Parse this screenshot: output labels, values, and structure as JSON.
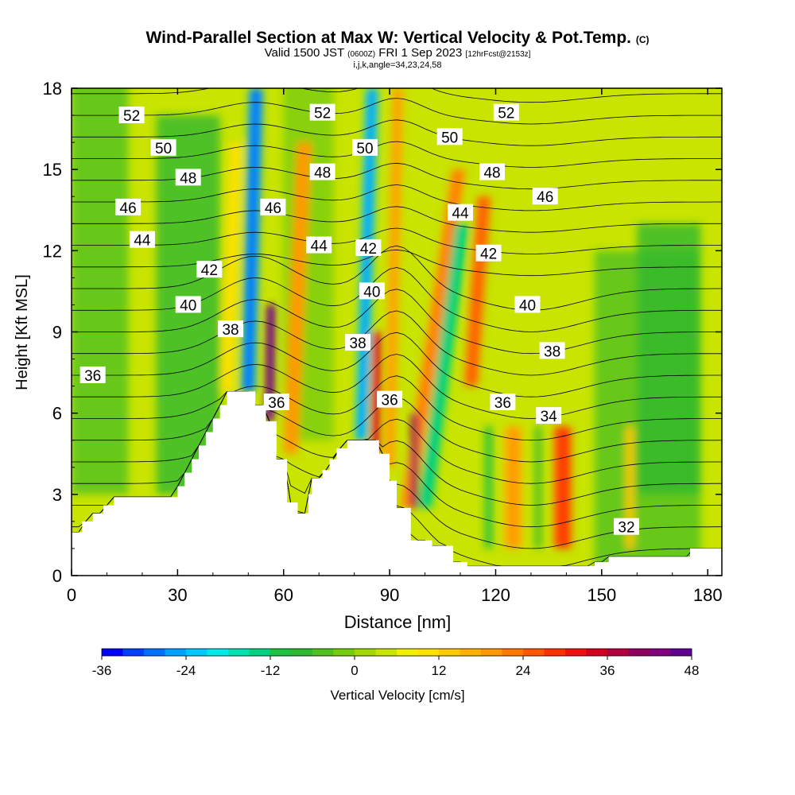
{
  "titles": {
    "main": "Wind-Parallel Section at Max W: Vertical Velocity & Pot.Temp.",
    "copyright": "(C)",
    "valid_prefix": "Valid 1500 JST",
    "valid_z": "(0600Z)",
    "valid_date": "FRI 1 Sep 2023",
    "forecast": "[12hrFcst@2153z]",
    "params": "i,j,k,angle=34,23,24,58"
  },
  "chart_data": {
    "type": "heatmap",
    "xlabel": "Distance [nm]",
    "ylabel": "Height [Kft MSL]",
    "xlim": [
      0,
      184
    ],
    "ylim": [
      0,
      18
    ],
    "x_ticks": [
      0,
      30,
      60,
      90,
      120,
      150,
      180
    ],
    "y_ticks": [
      0,
      3,
      6,
      9,
      12,
      15,
      18
    ],
    "colorbar": {
      "label": "Vertical Velocity [cm/s]",
      "ticks": [
        -36,
        -24,
        -12,
        0,
        12,
        24,
        36,
        48
      ],
      "levels": [
        -36,
        -33,
        -30,
        -27,
        -24,
        -21,
        -18,
        -15,
        -12,
        -9,
        -6,
        -3,
        0,
        3,
        6,
        9,
        12,
        15,
        18,
        21,
        24,
        27,
        30,
        33,
        36,
        39,
        42,
        45,
        48
      ],
      "colors": [
        "#0000ff",
        "#0040ff",
        "#0070ff",
        "#00a0ff",
        "#00c8ff",
        "#00e8e8",
        "#00e0b0",
        "#00d080",
        "#20c040",
        "#30b830",
        "#50c020",
        "#78cc10",
        "#a0d800",
        "#c8e400",
        "#f0f000",
        "#ffe000",
        "#ffc800",
        "#ffb000",
        "#ff9800",
        "#ff7800",
        "#ff5800",
        "#ff3000",
        "#f01010",
        "#d00020",
        "#b00040",
        "#900060",
        "#800080",
        "#600090"
      ]
    },
    "terrain_profile": [
      [
        0,
        1.6
      ],
      [
        3,
        1.6
      ],
      [
        3,
        2.0
      ],
      [
        6,
        2.0
      ],
      [
        6,
        2.3
      ],
      [
        9,
        2.3
      ],
      [
        9,
        2.6
      ],
      [
        12,
        2.6
      ],
      [
        12,
        2.9
      ],
      [
        30,
        2.9
      ],
      [
        30,
        3.3
      ],
      [
        32,
        3.3
      ],
      [
        32,
        3.8
      ],
      [
        34,
        3.8
      ],
      [
        34,
        4.3
      ],
      [
        36,
        4.3
      ],
      [
        36,
        4.8
      ],
      [
        38,
        4.8
      ],
      [
        38,
        5.3
      ],
      [
        40,
        5.3
      ],
      [
        40,
        5.8
      ],
      [
        42,
        5.8
      ],
      [
        42,
        6.3
      ],
      [
        44,
        6.3
      ],
      [
        44,
        6.8
      ],
      [
        52,
        6.8
      ],
      [
        52,
        6.3
      ],
      [
        55,
        6.3
      ],
      [
        55,
        5.7
      ],
      [
        58,
        5.7
      ],
      [
        58,
        4.3
      ],
      [
        61,
        4.3
      ],
      [
        61,
        2.7
      ],
      [
        64,
        2.7
      ],
      [
        64,
        2.3
      ],
      [
        67,
        2.3
      ],
      [
        67,
        3.0
      ],
      [
        68,
        3.0
      ],
      [
        68,
        3.6
      ],
      [
        71,
        3.6
      ],
      [
        71,
        3.9
      ],
      [
        73,
        3.9
      ],
      [
        73,
        4.3
      ],
      [
        75,
        4.3
      ],
      [
        75,
        4.7
      ],
      [
        78,
        4.7
      ],
      [
        78,
        5.0
      ],
      [
        87,
        5.0
      ],
      [
        87,
        4.5
      ],
      [
        90,
        4.5
      ],
      [
        90,
        3.5
      ],
      [
        92,
        3.5
      ],
      [
        92,
        2.5
      ],
      [
        96,
        2.5
      ],
      [
        96,
        1.3
      ],
      [
        102,
        1.3
      ],
      [
        102,
        1.1
      ],
      [
        108,
        1.1
      ],
      [
        108,
        0.5
      ],
      [
        112,
        0.5
      ],
      [
        112,
        0.35
      ],
      [
        148,
        0.35
      ],
      [
        148,
        0.5
      ],
      [
        152,
        0.5
      ],
      [
        152,
        0.7
      ],
      [
        175,
        0.7
      ],
      [
        175,
        1.0
      ],
      [
        184,
        1.0
      ]
    ],
    "vertical_velocity_features": [
      {
        "x": 50,
        "base": 6.8,
        "top": 18,
        "tilt": 0.6,
        "w": 4,
        "value": -26
      },
      {
        "x": 56,
        "base": 5.7,
        "top": 10,
        "tilt": 0.3,
        "w": 2.5,
        "value": 42
      },
      {
        "x": 62,
        "base": 4.5,
        "top": 16,
        "tilt": 1.0,
        "w": 4,
        "value": 18
      },
      {
        "x": 44,
        "base": 6.8,
        "top": 16,
        "tilt": 0.8,
        "w": 3,
        "value": 10
      },
      {
        "x": 82,
        "base": 5.0,
        "top": 18,
        "tilt": 0.7,
        "w": 3.5,
        "value": -22
      },
      {
        "x": 86,
        "base": 4.5,
        "top": 9,
        "tilt": 0.3,
        "w": 2.5,
        "value": 30
      },
      {
        "x": 90,
        "base": 4.0,
        "top": 18,
        "tilt": 0.5,
        "w": 3,
        "value": 16
      },
      {
        "x": 95,
        "base": 2.5,
        "top": 15,
        "tilt": 3.5,
        "w": 4,
        "value": 20
      },
      {
        "x": 97,
        "base": 2.5,
        "top": 6,
        "tilt": 0,
        "w": 2,
        "value": 36
      },
      {
        "x": 100,
        "base": 2.5,
        "top": 13,
        "tilt": 3.0,
        "w": 4,
        "value": -14
      },
      {
        "x": 113,
        "base": 7,
        "top": 14,
        "tilt": 1.6,
        "w": 4,
        "value": 22
      },
      {
        "x": 125,
        "base": 1.0,
        "top": 5.5,
        "tilt": 0,
        "w": 5,
        "value": 17
      },
      {
        "x": 139,
        "base": 1.0,
        "top": 5.5,
        "tilt": 0,
        "w": 5,
        "value": 26
      },
      {
        "x": 118,
        "base": 1.0,
        "top": 5.5,
        "tilt": 0,
        "w": 2,
        "value": -10
      },
      {
        "x": 132,
        "base": 1.0,
        "top": 5.5,
        "tilt": 0,
        "w": 2,
        "value": -6
      },
      {
        "x": 158,
        "base": 1.0,
        "top": 5.5,
        "tilt": 0,
        "w": 2,
        "value": 12
      }
    ],
    "isentrope_levels": [
      32,
      33,
      34,
      35,
      36,
      37,
      38,
      39,
      40,
      41,
      42,
      43,
      44,
      45,
      46,
      47,
      48,
      49,
      50,
      51,
      52,
      53,
      54
    ],
    "contour_labels": [
      {
        "text": "52",
        "x": 17,
        "y": 17.0
      },
      {
        "text": "50",
        "x": 26,
        "y": 15.8
      },
      {
        "text": "48",
        "x": 33,
        "y": 14.7
      },
      {
        "text": "46",
        "x": 16,
        "y": 13.6
      },
      {
        "text": "44",
        "x": 20,
        "y": 12.4
      },
      {
        "text": "42",
        "x": 39,
        "y": 11.3
      },
      {
        "text": "40",
        "x": 33,
        "y": 10.0
      },
      {
        "text": "38",
        "x": 45,
        "y": 9.1
      },
      {
        "text": "36",
        "x": 6,
        "y": 7.4
      },
      {
        "text": "52",
        "x": 71,
        "y": 17.1
      },
      {
        "text": "48",
        "x": 71,
        "y": 14.9
      },
      {
        "text": "46",
        "x": 57,
        "y": 13.6
      },
      {
        "text": "44",
        "x": 70,
        "y": 12.2
      },
      {
        "text": "42",
        "x": 84,
        "y": 12.1
      },
      {
        "text": "40",
        "x": 85,
        "y": 10.5
      },
      {
        "text": "38",
        "x": 81,
        "y": 8.6
      },
      {
        "text": "50",
        "x": 83,
        "y": 15.8
      },
      {
        "text": "36",
        "x": 58,
        "y": 6.4
      },
      {
        "text": "36",
        "x": 90,
        "y": 6.5
      },
      {
        "text": "52",
        "x": 123,
        "y": 17.1
      },
      {
        "text": "50",
        "x": 107,
        "y": 16.2
      },
      {
        "text": "48",
        "x": 119,
        "y": 14.9
      },
      {
        "text": "46",
        "x": 134,
        "y": 14.0
      },
      {
        "text": "44",
        "x": 110,
        "y": 13.4
      },
      {
        "text": "42",
        "x": 118,
        "y": 11.9
      },
      {
        "text": "40",
        "x": 129,
        "y": 10.0
      },
      {
        "text": "38",
        "x": 136,
        "y": 8.3
      },
      {
        "text": "36",
        "x": 122,
        "y": 6.4
      },
      {
        "text": "34",
        "x": 135,
        "y": 5.9
      },
      {
        "text": "32",
        "x": 157,
        "y": 1.8
      }
    ]
  }
}
